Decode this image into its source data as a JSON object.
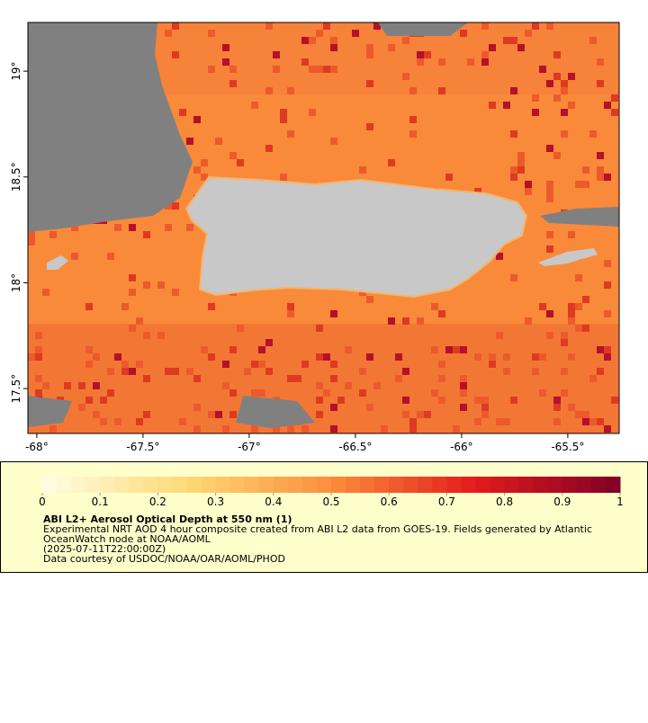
{
  "map": {
    "xlim": [
      -68.042,
      -65.258
    ],
    "ylim": [
      17.288,
      19.23
    ],
    "xticks": [
      {
        "value": -68,
        "label": "-68°"
      },
      {
        "value": -67.5,
        "label": "-67.5°"
      },
      {
        "value": -67,
        "label": "-67°"
      },
      {
        "value": -66.5,
        "label": "-66.5°"
      },
      {
        "value": -66,
        "label": "-66°"
      },
      {
        "value": -65.5,
        "label": "-65.5°"
      }
    ],
    "yticks": [
      {
        "value": 17.5,
        "label": "17.5°"
      },
      {
        "value": 18,
        "label": "18°"
      },
      {
        "value": 18.5,
        "label": "18.5°"
      },
      {
        "value": 19,
        "label": "19°"
      }
    ]
  },
  "colorbar": {
    "lim": [
      0,
      1
    ],
    "ticks": [
      0,
      0.1,
      0.2,
      0.3,
      0.4,
      0.5,
      0.6,
      0.7,
      0.8,
      0.9,
      1
    ],
    "colors": [
      "#fffde6",
      "#fed976",
      "#fd8d3c",
      "#e31a1c",
      "#800026"
    ]
  },
  "caption": {
    "title": "ABI L2+ Aerosol Optical Depth at 550 nm (1)",
    "lines": [
      "Experimental NRT AOD 4 hour composite created from ABI L2 data from GOES-19. Fields generated by Atlantic",
      "OceanWatch node at NOAA/AOML",
      "(2025-07-11T22:00:00Z)",
      "Data courtesy of USDOC/NOAA/OAR/AOML/PHOD"
    ]
  }
}
